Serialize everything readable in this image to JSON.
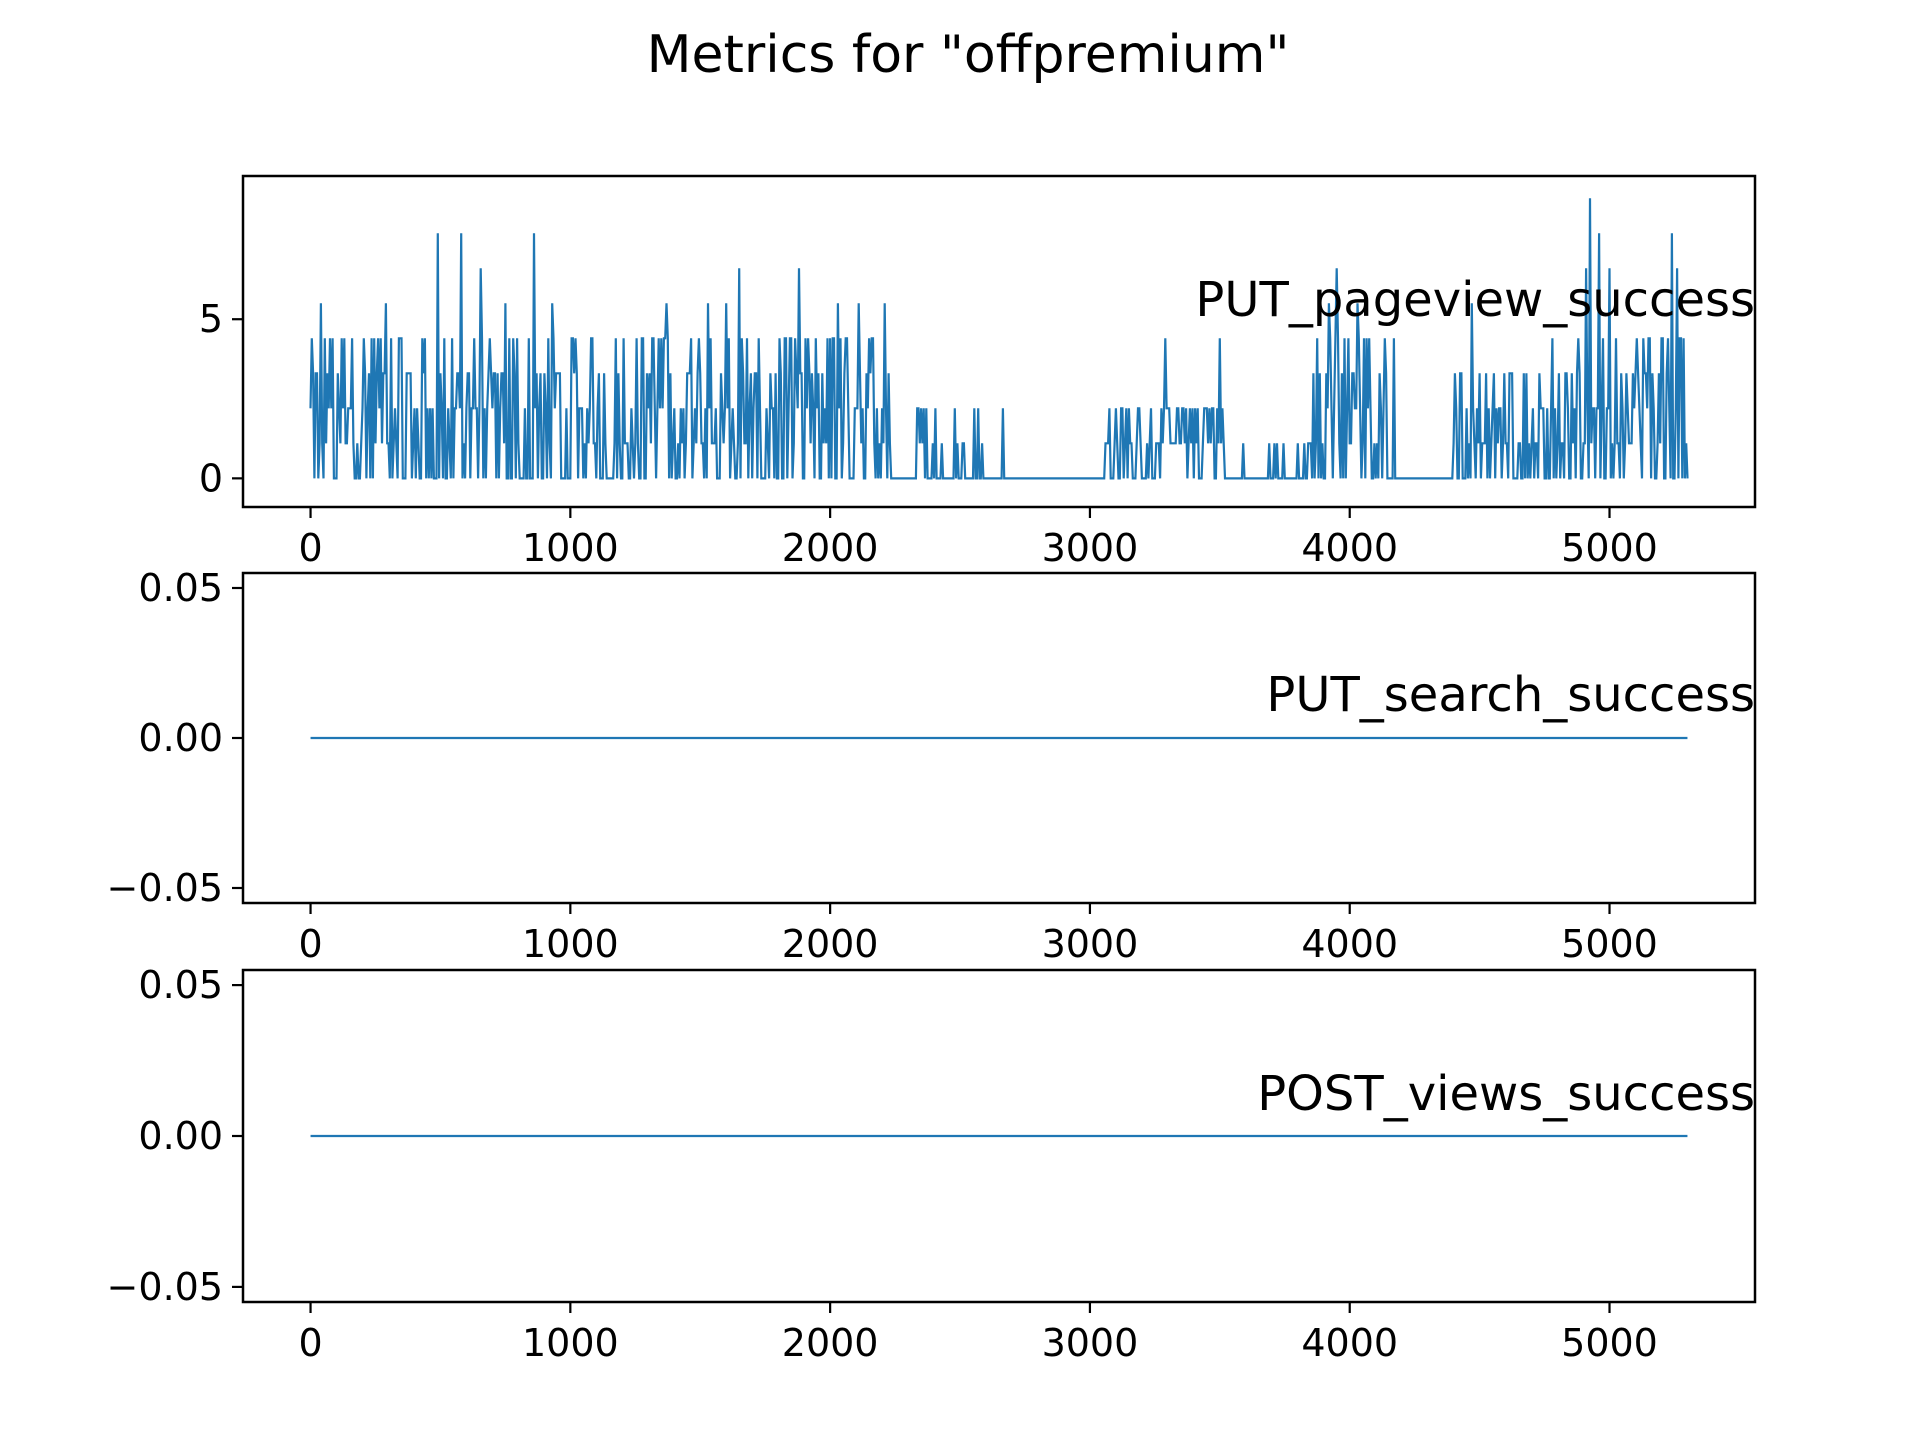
{
  "title": "Metrics for \"offpremium\"",
  "colors": {
    "series": "#1f77b4",
    "axes": "#000000",
    "background": "#ffffff"
  },
  "chart_data": [
    {
      "type": "line",
      "label": "PUT_pageview_success",
      "xlim": [
        -260,
        5560
      ],
      "ylim": [
        -0.9,
        9.5
      ],
      "xticks": [
        0,
        1000,
        2000,
        3000,
        4000,
        5000
      ],
      "xtick_labels": [
        "0",
        "1000",
        "2000",
        "3000",
        "4000",
        "5000"
      ],
      "yticks": [
        0,
        5
      ],
      "ytick_labels": [
        "0",
        "5"
      ],
      "x_range": [
        0,
        5300
      ],
      "value_levels": [
        0,
        1.1,
        2.2,
        3.3,
        4.4,
        5.5,
        6.6,
        7.7,
        8.8
      ],
      "active_segments": [
        {
          "x": [
            0,
            2230
          ],
          "peak": 7.7
        },
        {
          "x": [
            2230,
            2700
          ],
          "peak": 2.2
        },
        {
          "x": [
            3060,
            3520
          ],
          "peak": 4.4
        },
        {
          "x": [
            3530,
            3860
          ],
          "peak": 1.1
        },
        {
          "x": [
            3860,
            4180
          ],
          "peak": 6.6
        },
        {
          "x": [
            4400,
            4880
          ],
          "peak": 5.5
        },
        {
          "x": [
            4880,
            5300
          ],
          "peak": 8.8
        }
      ],
      "spikes": [
        {
          "x": 490,
          "y": 7.7
        },
        {
          "x": 580,
          "y": 7.7
        },
        {
          "x": 860,
          "y": 7.7
        },
        {
          "x": 655,
          "y": 6.6
        },
        {
          "x": 1650,
          "y": 6.6
        },
        {
          "x": 1880,
          "y": 6.6
        },
        {
          "x": 1370,
          "y": 5.5
        },
        {
          "x": 1530,
          "y": 5.5
        },
        {
          "x": 1600,
          "y": 5.5
        },
        {
          "x": 2030,
          "y": 5.5
        },
        {
          "x": 2110,
          "y": 5.5
        },
        {
          "x": 2210,
          "y": 5.5
        },
        {
          "x": 40,
          "y": 5.5
        },
        {
          "x": 290,
          "y": 5.5
        },
        {
          "x": 750,
          "y": 5.5
        },
        {
          "x": 930,
          "y": 5.5
        },
        {
          "x": 2360,
          "y": 2.2
        },
        {
          "x": 3290,
          "y": 4.4
        },
        {
          "x": 3500,
          "y": 4.4
        },
        {
          "x": 3950,
          "y": 6.6
        },
        {
          "x": 3920,
          "y": 5.5
        },
        {
          "x": 4030,
          "y": 5.5
        },
        {
          "x": 4470,
          "y": 5.5
        },
        {
          "x": 4780,
          "y": 4.4
        },
        {
          "x": 4925,
          "y": 8.8
        },
        {
          "x": 4960,
          "y": 7.7
        },
        {
          "x": 5240,
          "y": 7.7
        },
        {
          "x": 4910,
          "y": 6.6
        },
        {
          "x": 5000,
          "y": 6.6
        },
        {
          "x": 5260,
          "y": 6.6
        }
      ]
    },
    {
      "type": "line",
      "label": "PUT_search_success",
      "xlim": [
        -260,
        5560
      ],
      "ylim": [
        -0.055,
        0.055
      ],
      "xticks": [
        0,
        1000,
        2000,
        3000,
        4000,
        5000
      ],
      "xtick_labels": [
        "0",
        "1000",
        "2000",
        "3000",
        "4000",
        "5000"
      ],
      "yticks": [
        -0.05,
        0,
        0.05
      ],
      "ytick_labels": [
        "−0.05",
        "0.00",
        "0.05"
      ],
      "x": [
        0,
        5300
      ],
      "y": [
        0,
        0
      ]
    },
    {
      "type": "line",
      "label": "POST_views_success",
      "xlim": [
        -260,
        5560
      ],
      "ylim": [
        -0.055,
        0.055
      ],
      "xticks": [
        0,
        1000,
        2000,
        3000,
        4000,
        5000
      ],
      "xtick_labels": [
        "0",
        "1000",
        "2000",
        "3000",
        "4000",
        "5000"
      ],
      "yticks": [
        -0.05,
        0,
        0.05
      ],
      "ytick_labels": [
        "−0.05",
        "0.00",
        "0.05"
      ],
      "x": [
        0,
        5300
      ],
      "y": [
        0,
        0
      ]
    }
  ]
}
